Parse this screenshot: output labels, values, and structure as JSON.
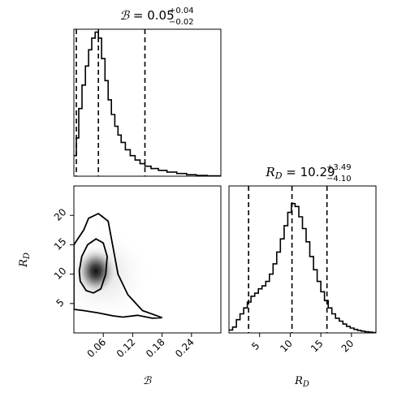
{
  "chart_data": [
    {
      "type": "histogram",
      "param_symbol": "ℬ",
      "title_value": "0.05",
      "title_plus": "+0.04",
      "title_minus": "−0.02",
      "xlim": [
        0.0,
        0.3
      ],
      "quantiles": [
        0.005,
        0.05,
        0.145
      ],
      "bins": [
        {
          "x": 0.003,
          "y": 0.14
        },
        {
          "x": 0.007,
          "y": 0.26
        },
        {
          "x": 0.013,
          "y": 0.46
        },
        {
          "x": 0.02,
          "y": 0.62
        },
        {
          "x": 0.027,
          "y": 0.75
        },
        {
          "x": 0.033,
          "y": 0.86
        },
        {
          "x": 0.04,
          "y": 0.94
        },
        {
          "x": 0.047,
          "y": 0.98
        },
        {
          "x": 0.053,
          "y": 0.94
        },
        {
          "x": 0.06,
          "y": 0.8
        },
        {
          "x": 0.067,
          "y": 0.65
        },
        {
          "x": 0.073,
          "y": 0.52
        },
        {
          "x": 0.08,
          "y": 0.42
        },
        {
          "x": 0.087,
          "y": 0.34
        },
        {
          "x": 0.093,
          "y": 0.28
        },
        {
          "x": 0.1,
          "y": 0.23
        },
        {
          "x": 0.11,
          "y": 0.18
        },
        {
          "x": 0.12,
          "y": 0.14
        },
        {
          "x": 0.13,
          "y": 0.11
        },
        {
          "x": 0.14,
          "y": 0.085
        },
        {
          "x": 0.15,
          "y": 0.068
        },
        {
          "x": 0.165,
          "y": 0.052
        },
        {
          "x": 0.18,
          "y": 0.04
        },
        {
          "x": 0.2,
          "y": 0.028
        },
        {
          "x": 0.22,
          "y": 0.018
        },
        {
          "x": 0.24,
          "y": 0.01
        },
        {
          "x": 0.26,
          "y": 0.005
        },
        {
          "x": 0.285,
          "y": 0.002
        }
      ]
    },
    {
      "type": "contour",
      "xlabel": "ℬ",
      "ylabel": "R_D",
      "xlim": [
        0.0,
        0.3
      ],
      "ylim": [
        0.0,
        25.0
      ],
      "xticks": [
        "0.06",
        "0.12",
        "0.18",
        "0.24"
      ],
      "xtick_values": [
        0.06,
        0.12,
        0.18,
        0.24
      ],
      "yticks": [
        "5",
        "10",
        "15",
        "20"
      ],
      "ytick_values": [
        5,
        10,
        15,
        20
      ],
      "density_peak": {
        "x": 0.045,
        "y": 10.5
      },
      "outer_contour": [
        [
          0.0,
          4.0
        ],
        [
          0.02,
          3.8
        ],
        [
          0.05,
          3.4
        ],
        [
          0.08,
          2.9
        ],
        [
          0.1,
          2.7
        ],
        [
          0.13,
          3.0
        ],
        [
          0.16,
          2.5
        ],
        [
          0.18,
          2.6
        ],
        [
          0.14,
          3.8
        ],
        [
          0.11,
          6.5
        ],
        [
          0.09,
          10.0
        ],
        [
          0.08,
          14.5
        ],
        [
          0.07,
          19.0
        ],
        [
          0.05,
          20.3
        ],
        [
          0.03,
          19.5
        ],
        [
          0.02,
          17.5
        ],
        [
          0.0,
          15.0
        ]
      ],
      "inner_contour": [
        [
          0.011,
          10.5
        ],
        [
          0.016,
          13.0
        ],
        [
          0.028,
          15.0
        ],
        [
          0.045,
          16.0
        ],
        [
          0.06,
          15.3
        ],
        [
          0.068,
          13.0
        ],
        [
          0.065,
          10.0
        ],
        [
          0.055,
          7.5
        ],
        [
          0.04,
          6.8
        ],
        [
          0.025,
          7.2
        ],
        [
          0.013,
          8.8
        ]
      ]
    },
    {
      "type": "histogram",
      "param_symbol": "R",
      "param_sub": "D",
      "title_value": "10.29",
      "title_plus": "+3.49",
      "title_minus": "−4.10",
      "xlabel": "R_D",
      "xlim": [
        0.0,
        24.0
      ],
      "xticks": [
        "5",
        "10",
        "15",
        "20"
      ],
      "xtick_values": [
        5,
        10,
        15,
        20
      ],
      "quantiles": [
        3.2,
        10.29,
        16.0
      ],
      "bins": [
        {
          "x": 0.3,
          "y": 0.02
        },
        {
          "x": 0.9,
          "y": 0.04
        },
        {
          "x": 1.5,
          "y": 0.09
        },
        {
          "x": 2.1,
          "y": 0.13
        },
        {
          "x": 2.7,
          "y": 0.17
        },
        {
          "x": 3.3,
          "y": 0.21
        },
        {
          "x": 3.9,
          "y": 0.25
        },
        {
          "x": 4.5,
          "y": 0.27
        },
        {
          "x": 5.1,
          "y": 0.3
        },
        {
          "x": 5.7,
          "y": 0.32
        },
        {
          "x": 6.3,
          "y": 0.35
        },
        {
          "x": 6.9,
          "y": 0.4
        },
        {
          "x": 7.5,
          "y": 0.47
        },
        {
          "x": 8.1,
          "y": 0.55
        },
        {
          "x": 8.7,
          "y": 0.64
        },
        {
          "x": 9.3,
          "y": 0.73
        },
        {
          "x": 9.9,
          "y": 0.82
        },
        {
          "x": 10.5,
          "y": 0.88
        },
        {
          "x": 11.1,
          "y": 0.86
        },
        {
          "x": 11.7,
          "y": 0.79
        },
        {
          "x": 12.3,
          "y": 0.71
        },
        {
          "x": 12.9,
          "y": 0.62
        },
        {
          "x": 13.5,
          "y": 0.52
        },
        {
          "x": 14.1,
          "y": 0.43
        },
        {
          "x": 14.7,
          "y": 0.35
        },
        {
          "x": 15.3,
          "y": 0.28
        },
        {
          "x": 15.9,
          "y": 0.22
        },
        {
          "x": 16.5,
          "y": 0.17
        },
        {
          "x": 17.1,
          "y": 0.13
        },
        {
          "x": 17.7,
          "y": 0.1
        },
        {
          "x": 18.3,
          "y": 0.08
        },
        {
          "x": 18.9,
          "y": 0.06
        },
        {
          "x": 19.5,
          "y": 0.045
        },
        {
          "x": 20.1,
          "y": 0.033
        },
        {
          "x": 20.7,
          "y": 0.024
        },
        {
          "x": 21.3,
          "y": 0.017
        },
        {
          "x": 21.9,
          "y": 0.012
        },
        {
          "x": 22.5,
          "y": 0.008
        },
        {
          "x": 23.1,
          "y": 0.005
        },
        {
          "x": 23.7,
          "y": 0.003
        }
      ]
    }
  ]
}
